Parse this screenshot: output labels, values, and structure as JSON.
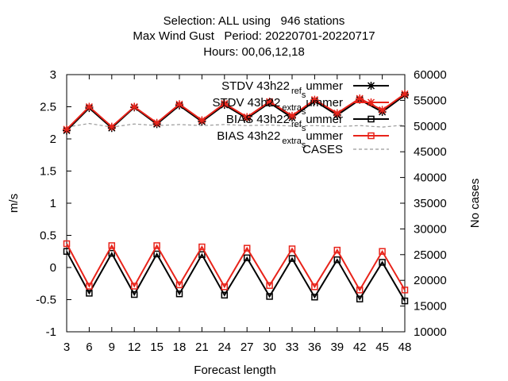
{
  "title_lines": [
    "Selection: ALL using   946 stations",
    "Max Wind Gust   Period: 20220701-20220717",
    "Hours: 00,06,12,18"
  ],
  "chart_data": {
    "type": "line",
    "xlabel": "Forecast length",
    "ylabel": "m/s",
    "y2label": "No cases",
    "x": [
      3,
      6,
      9,
      12,
      15,
      18,
      21,
      24,
      27,
      30,
      33,
      36,
      39,
      42,
      45,
      48
    ],
    "xticks": [
      "3",
      "6",
      "9",
      "12",
      "15",
      "18",
      "21",
      "24",
      "27",
      "30",
      "33",
      "36",
      "39",
      "42",
      "45",
      "48"
    ],
    "ylim": [
      -1,
      3
    ],
    "yticks": [
      "-1",
      "-0.5",
      "0",
      "0.5",
      "1",
      "1.5",
      "2",
      "2.5",
      "3"
    ],
    "y2lim": [
      10000,
      60000
    ],
    "y2ticks": [
      "10000",
      "15000",
      "20000",
      "25000",
      "30000",
      "35000",
      "40000",
      "45000",
      "50000",
      "55000",
      "60000"
    ],
    "legend_position": "top-right",
    "series": [
      {
        "name": "STDV 43h22_ref_summer",
        "legend_parts": [
          "STDV 43h22",
          "ref",
          "s",
          "ummer"
        ],
        "color": "#000000",
        "marker": "star",
        "axis": "y1",
        "values": [
          2.13,
          2.48,
          2.17,
          2.49,
          2.23,
          2.52,
          2.27,
          2.53,
          2.32,
          2.56,
          2.33,
          2.59,
          2.37,
          2.61,
          2.42,
          2.68
        ]
      },
      {
        "name": "STDV 43h22_extra_summer",
        "legend_parts": [
          "STDV 43h22",
          "extra",
          "s",
          "ummer"
        ],
        "color": "#e8231a",
        "marker": "star",
        "axis": "y1",
        "values": [
          2.15,
          2.5,
          2.19,
          2.5,
          2.25,
          2.54,
          2.29,
          2.55,
          2.34,
          2.58,
          2.36,
          2.61,
          2.4,
          2.63,
          2.45,
          2.7
        ]
      },
      {
        "name": "BIAS 43h22_ref_summer",
        "legend_parts": [
          "BIAS 43h22",
          "ref",
          "s",
          "ummer"
        ],
        "color": "#000000",
        "marker": "square",
        "axis": "y1",
        "values": [
          0.25,
          -0.4,
          0.22,
          -0.42,
          0.21,
          -0.41,
          0.2,
          -0.43,
          0.15,
          -0.45,
          0.14,
          -0.46,
          0.12,
          -0.49,
          0.08,
          -0.52
        ]
      },
      {
        "name": "BIAS 43h22_extra_summer",
        "legend_parts": [
          "BIAS 43h22",
          "extra",
          "s",
          "ummer"
        ],
        "color": "#e8231a",
        "marker": "square",
        "axis": "y1",
        "values": [
          0.37,
          -0.29,
          0.34,
          -0.29,
          0.34,
          -0.27,
          0.32,
          -0.3,
          0.3,
          -0.28,
          0.29,
          -0.3,
          0.27,
          -0.35,
          0.25,
          -0.35
        ]
      },
      {
        "name": "CASES",
        "legend_parts": [
          "CASES",
          "",
          "",
          ""
        ],
        "color": "#999999",
        "marker": "none",
        "dash": true,
        "axis": "y2",
        "values": [
          49800,
          50500,
          49800,
          50400,
          50100,
          50300,
          50100,
          50300,
          50100,
          50200,
          50000,
          50100,
          49900,
          50100,
          49800,
          50200
        ]
      }
    ]
  }
}
